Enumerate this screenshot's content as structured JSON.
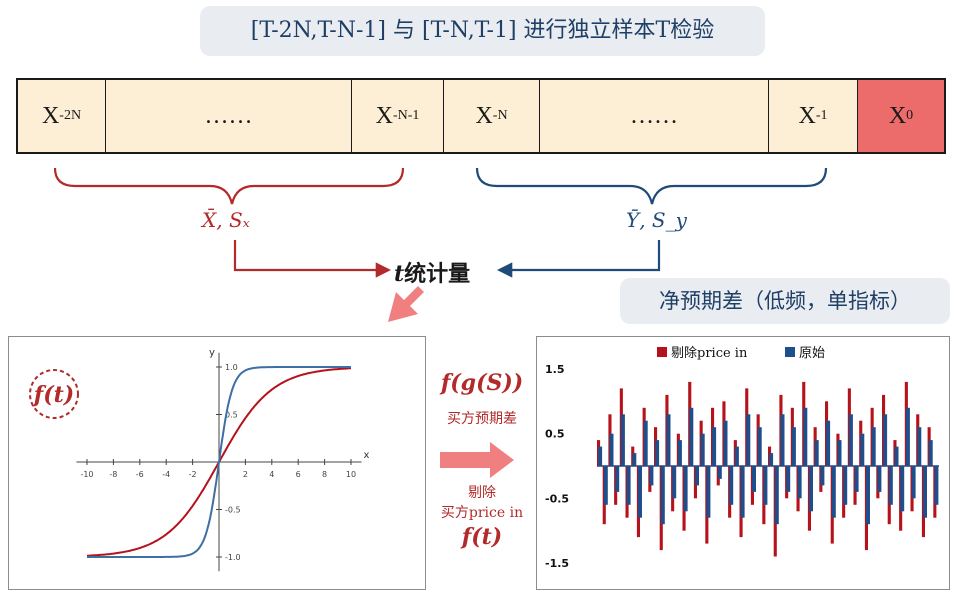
{
  "header": {
    "title": "[T-2N,T-N-1] 与 [T-N,T-1] 进行独立样本T检验"
  },
  "sequence": {
    "cells": [
      {
        "base": "X",
        "sub": "-2N"
      },
      {
        "base": "……",
        "sub": ""
      },
      {
        "base": "X",
        "sub": "-N-1"
      },
      {
        "base": "X",
        "sub": "-N"
      },
      {
        "base": "……",
        "sub": ""
      },
      {
        "base": "X",
        "sub": "-1"
      },
      {
        "base": "X",
        "sub": "0"
      }
    ]
  },
  "stats": {
    "left_label": "X̄, Sₓ",
    "right_label": "Ȳ, S_y",
    "t_stat_t": "t",
    "t_stat_rest": "统计量"
  },
  "net_panel": {
    "title": "净预期差（低频，单指标）"
  },
  "middle": {
    "fg": "f(g(S))",
    "buy_expect": "买方预期差",
    "remove": "剔除",
    "buy_price_in": "买方price in",
    "ft": "f(t)"
  },
  "sigmoid_chart": {
    "badge": "f(t)",
    "x_axis_label": "x",
    "y_axis_label": "y"
  },
  "colors": {
    "red": "#b5121b",
    "blue": "#1f4e8c",
    "dark_red": "#b22a2a",
    "navy": "#1f4b7a",
    "x0_fill": "#ec6b6b",
    "cell_fill": "#fcefd5"
  },
  "chart_data": [
    {
      "type": "line",
      "x_ticks": [
        -10,
        -8,
        -6,
        -4,
        -2,
        0,
        2,
        4,
        6,
        8,
        10
      ],
      "y_ticks": [
        1.0,
        0.5,
        -0.5,
        -1.0
      ],
      "xlim": [
        -10,
        10
      ],
      "ylim": [
        -1.0,
        1.0
      ],
      "x_axis_label": "x",
      "y_axis_label": "y",
      "series": [
        {
          "color": "#b5121b",
          "function": "tanh(x/4)"
        },
        {
          "color": "#3d6fa3",
          "function": "tanh(x)"
        }
      ]
    },
    {
      "type": "bar",
      "ylim": [
        -1.5,
        1.5
      ],
      "y_ticks": [
        1.5,
        0.5,
        -0.5,
        -1.5
      ],
      "legend_position": "top",
      "series": [
        {
          "name": "剔除price in",
          "color": "#b5121b",
          "values": [
            0.4,
            -0.9,
            0.8,
            -0.6,
            1.2,
            -0.8,
            0.3,
            -1.1,
            0.9,
            -0.4,
            0.6,
            -1.3,
            1.1,
            -0.7,
            0.5,
            -1.0,
            1.3,
            -0.5,
            0.7,
            -1.2,
            0.9,
            -0.3,
            1.0,
            -0.8,
            0.4,
            -1.1,
            1.2,
            -0.6,
            0.8,
            -0.9,
            0.3,
            -1.4,
            1.1,
            -0.5,
            0.9,
            -0.7,
            1.3,
            -1.0,
            0.6,
            -0.4,
            1.0,
            -1.2,
            0.5,
            -0.8,
            1.2,
            -0.6,
            0.7,
            -1.3,
            0.9,
            -0.5,
            1.1,
            -0.9,
            0.4,
            -1.0,
            1.3,
            -0.7,
            0.8,
            -1.1,
            0.6,
            -0.8
          ]
        },
        {
          "name": "原始",
          "color": "#1f4e8c",
          "values": [
            0.3,
            -0.6,
            0.5,
            -0.4,
            0.8,
            -0.6,
            0.2,
            -0.8,
            0.7,
            -0.3,
            0.4,
            -0.9,
            0.8,
            -0.5,
            0.4,
            -0.7,
            0.9,
            -0.3,
            0.5,
            -0.8,
            0.6,
            -0.2,
            0.7,
            -0.6,
            0.3,
            -0.8,
            0.8,
            -0.4,
            0.6,
            -0.6,
            0.2,
            -0.9,
            0.8,
            -0.4,
            0.6,
            -0.5,
            0.9,
            -0.7,
            0.4,
            -0.3,
            0.7,
            -0.8,
            0.4,
            -0.6,
            0.8,
            -0.4,
            0.5,
            -0.9,
            0.6,
            -0.4,
            0.8,
            -0.6,
            0.3,
            -0.7,
            0.9,
            -0.5,
            0.6,
            -0.8,
            0.4,
            -0.6
          ]
        }
      ]
    }
  ]
}
